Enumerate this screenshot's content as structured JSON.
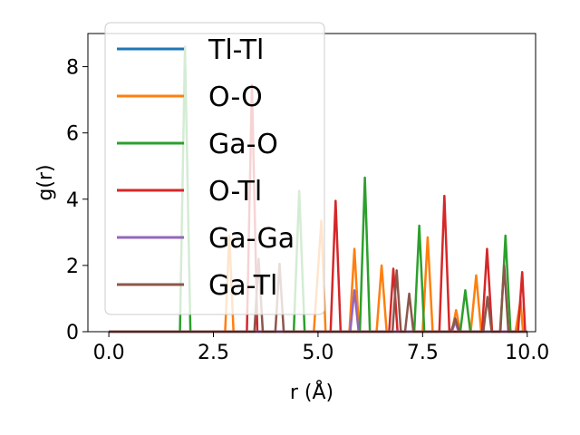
{
  "chart_data": {
    "type": "line",
    "xlabel": "r (Å)",
    "ylabel": "g(r)",
    "xlim": [
      -0.5,
      10.2
    ],
    "ylim": [
      0,
      9
    ],
    "xticks": [
      0.0,
      2.5,
      5.0,
      7.5,
      10.0
    ],
    "xtick_labels": [
      "0.0",
      "2.5",
      "5.0",
      "7.5",
      "10.0"
    ],
    "yticks": [
      0,
      2,
      4,
      6,
      8
    ],
    "ytick_labels": [
      "0",
      "2",
      "4",
      "6",
      "8"
    ],
    "grid": false,
    "legend": "upper-left",
    "series": [
      {
        "name": "Tl-Tl",
        "color": "#1f77b4",
        "x": [
          0.0,
          10.0
        ],
        "y": [
          0,
          0
        ]
      },
      {
        "name": "O-O",
        "color": "#ff7f0e",
        "x": [
          0.0,
          2.78,
          2.88,
          2.98,
          4.9,
          5.08,
          5.18,
          5.75,
          5.87,
          5.98,
          6.4,
          6.52,
          6.64,
          7.5,
          7.62,
          7.74,
          8.2,
          8.3,
          8.4,
          8.65,
          8.78,
          8.9,
          9.72,
          9.84,
          9.9
        ],
        "y": [
          0,
          0,
          2.9,
          0,
          0,
          3.35,
          0,
          0,
          2.5,
          0,
          0,
          2.0,
          0,
          0,
          2.85,
          0,
          0,
          0.65,
          0,
          0,
          1.7,
          0,
          0,
          0.95,
          0
        ]
      },
      {
        "name": "Ga-O",
        "color": "#2ca02c",
        "x": [
          0.0,
          1.7,
          1.82,
          1.95,
          4.42,
          4.55,
          4.68,
          6.0,
          6.12,
          6.24,
          7.3,
          7.42,
          7.54,
          8.4,
          8.52,
          8.64,
          9.36,
          9.48,
          9.6,
          10.0
        ],
        "y": [
          0,
          0,
          8.6,
          0,
          0,
          4.25,
          0,
          0,
          4.65,
          0,
          0,
          3.2,
          0,
          0,
          1.25,
          0,
          0,
          2.9,
          0,
          0
        ]
      },
      {
        "name": "O-Tl",
        "color": "#d62728",
        "x": [
          0.0,
          3.3,
          3.42,
          3.55,
          5.3,
          5.42,
          5.54,
          6.7,
          6.8,
          6.9,
          7.9,
          8.02,
          8.14,
          8.92,
          9.04,
          9.16,
          9.78,
          9.88,
          9.95
        ],
        "y": [
          0,
          0,
          7.45,
          0,
          0,
          3.95,
          0,
          0,
          1.9,
          0,
          0,
          4.1,
          0,
          0,
          2.5,
          0,
          0,
          1.8,
          0
        ]
      },
      {
        "name": "Ga-Ga",
        "color": "#9467bd",
        "x": [
          0.0,
          5.77,
          5.87,
          5.97,
          8.2,
          8.28,
          8.36,
          10.0
        ],
        "y": [
          0,
          0,
          1.25,
          0,
          0,
          0.3,
          0,
          0
        ]
      },
      {
        "name": "Ga-Tl",
        "color": "#8c564b",
        "x": [
          0.0,
          3.48,
          3.58,
          3.68,
          3.98,
          4.08,
          4.18,
          6.78,
          6.88,
          6.98,
          7.08,
          7.18,
          7.28,
          8.18,
          8.28,
          8.38,
          8.95,
          9.05,
          9.15,
          9.35,
          9.45,
          9.55,
          10.0
        ],
        "y": [
          0,
          0,
          2.2,
          0,
          0,
          2.05,
          0,
          0,
          1.85,
          0,
          0,
          1.15,
          0,
          0,
          0.4,
          0,
          0,
          1.05,
          0,
          0,
          2.0,
          0,
          0
        ]
      }
    ]
  }
}
